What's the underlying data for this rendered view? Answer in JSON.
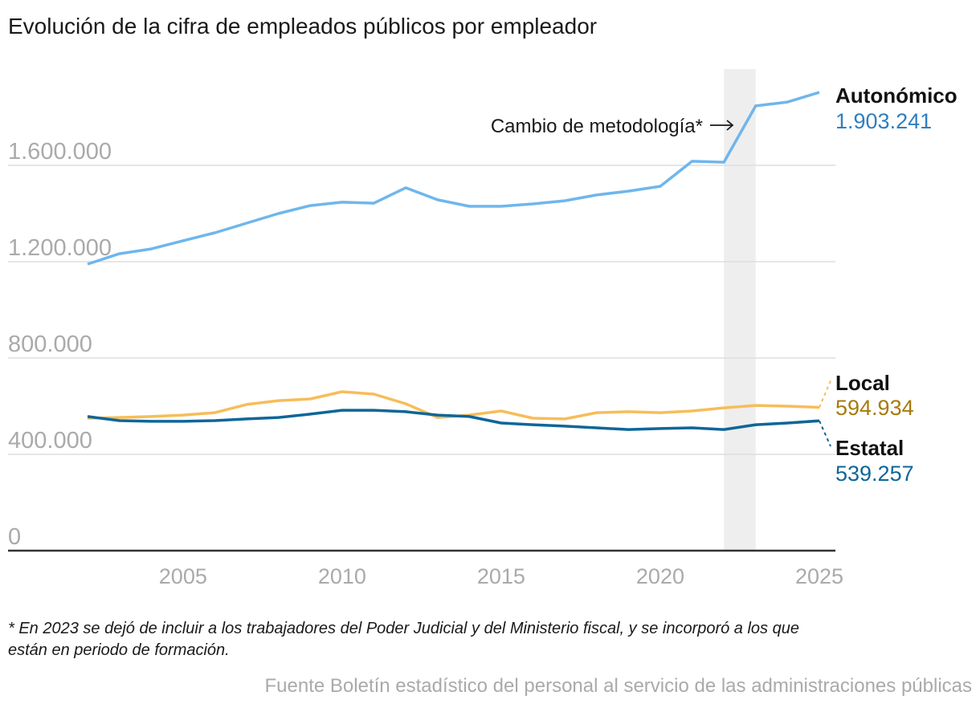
{
  "chart_data": {
    "type": "line",
    "title": "Evolución de la cifra de empleados públicos por empleador",
    "xlabel": "",
    "ylabel": "",
    "x": [
      2002,
      2003,
      2004,
      2005,
      2006,
      2007,
      2008,
      2009,
      2010,
      2011,
      2012,
      2013,
      2014,
      2015,
      2016,
      2017,
      2018,
      2019,
      2020,
      2021,
      2022,
      2023,
      2024,
      2025
    ],
    "xlim": [
      2002,
      2025
    ],
    "ylim": [
      0,
      1950000
    ],
    "x_ticks": [
      "2005",
      "2010",
      "2015",
      "2020",
      "2025"
    ],
    "y_ticks": [
      {
        "value": 0,
        "label": "0"
      },
      {
        "value": 400000,
        "label": "400.000"
      },
      {
        "value": 800000,
        "label": "800.000"
      },
      {
        "value": 1200000,
        "label": "1.200.000"
      },
      {
        "value": 1600000,
        "label": "1.600.000"
      }
    ],
    "grid": "horizontal",
    "series": [
      {
        "name": "Autonómico",
        "color": "#6fb6ec",
        "label_color": "#2f7fc1",
        "end_label": "1.903.241",
        "values": [
          1190000,
          1233000,
          1253000,
          1287000,
          1320000,
          1360000,
          1400000,
          1433000,
          1447000,
          1443000,
          1507000,
          1457000,
          1430000,
          1430000,
          1440000,
          1453000,
          1477000,
          1493000,
          1513000,
          1617000,
          1613000,
          1847000,
          1863000,
          1903241
        ]
      },
      {
        "name": "Local",
        "color": "#f7bd59",
        "label_color": "#a77b0c",
        "end_label": "594.934",
        "values": [
          550000,
          553000,
          557000,
          563000,
          573000,
          607000,
          623000,
          630000,
          660000,
          650000,
          610000,
          553000,
          563000,
          580000,
          550000,
          547000,
          573000,
          577000,
          573000,
          580000,
          593000,
          603000,
          600000,
          594934
        ]
      },
      {
        "name": "Estatal",
        "color": "#0e6698",
        "label_color": "#0e6698",
        "end_label": "539.257",
        "values": [
          557000,
          540000,
          537000,
          537000,
          540000,
          547000,
          553000,
          567000,
          583000,
          583000,
          577000,
          563000,
          557000,
          530000,
          523000,
          517000,
          510000,
          503000,
          507000,
          510000,
          503000,
          523000,
          530000,
          539257
        ]
      }
    ],
    "highlight_band": {
      "x_range": [
        2022,
        2023
      ],
      "color": "#eeeeee"
    },
    "annotation": "Cambio de metodología*"
  },
  "footnote": [
    "* En 2023 se dejó de incluir a los trabajadores del Poder Judicial y del Ministerio fiscal, y se incorporó a los que",
    "están en periodo de formación."
  ],
  "source": "Fuente Boletín estadístico del personal al servicio de las administraciones públicas"
}
